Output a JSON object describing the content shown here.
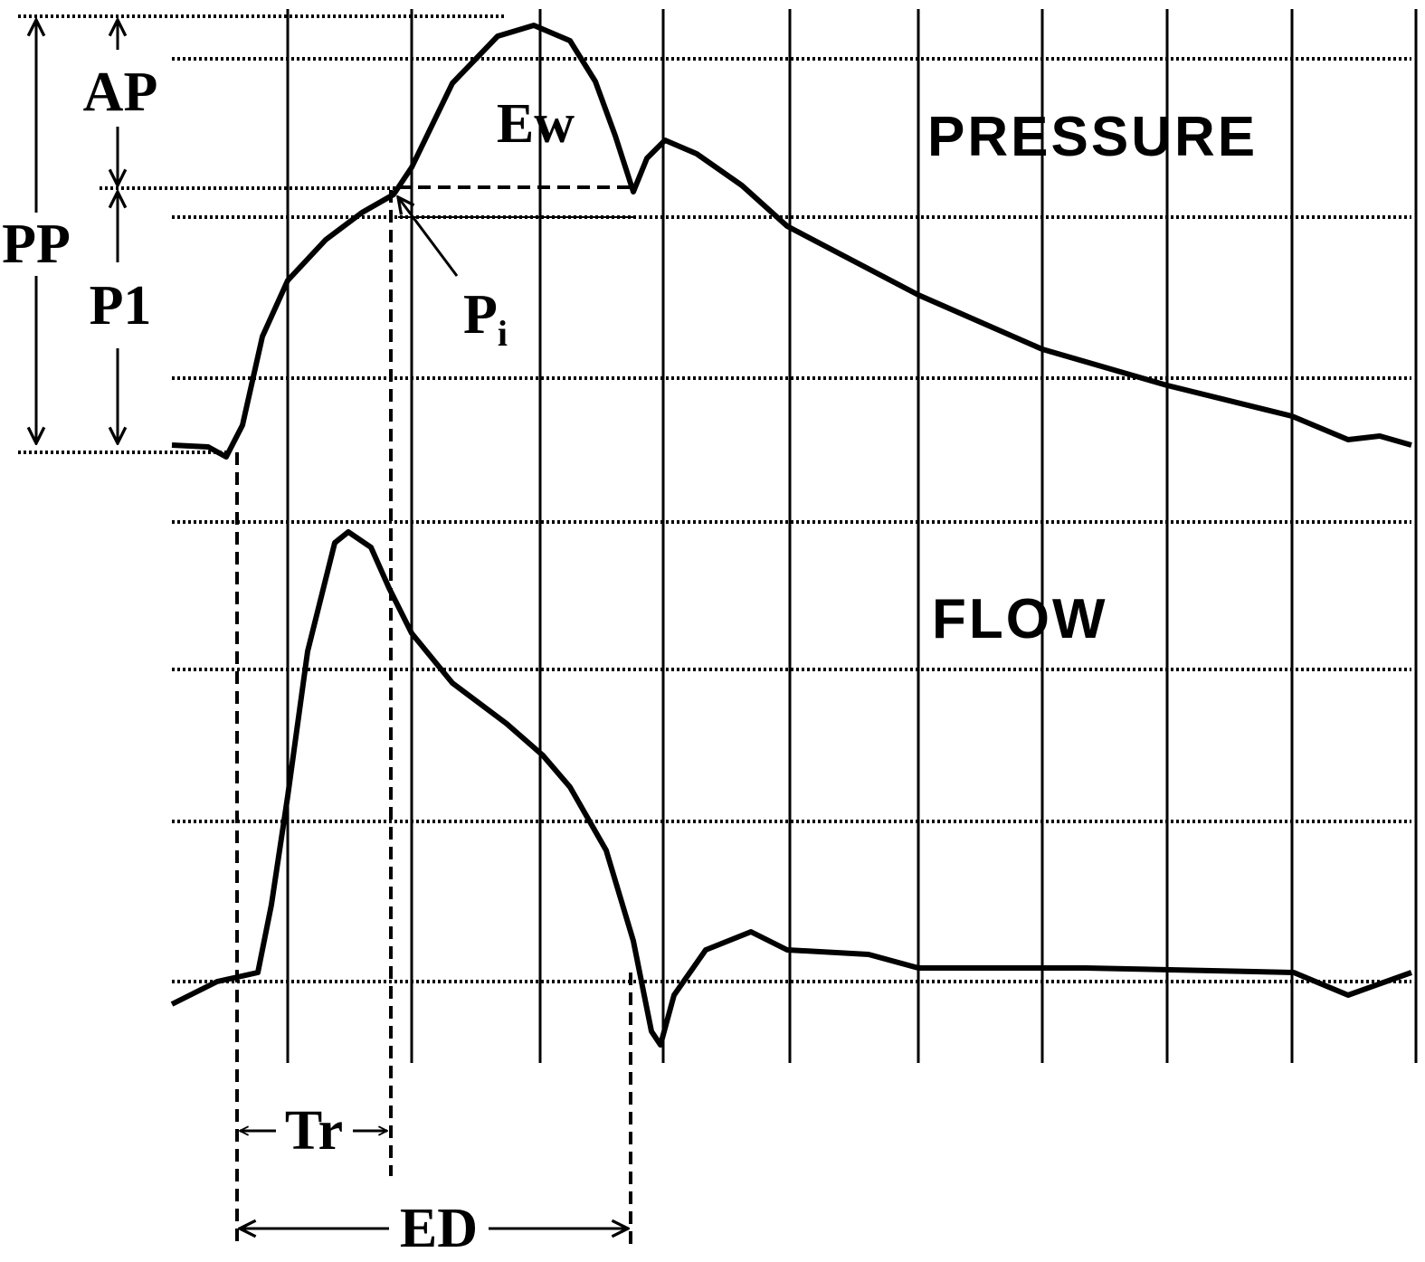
{
  "labels": {
    "pp": "PP",
    "ap": "AP",
    "p1": "P1",
    "pi": {
      "main": "P",
      "sub": "i"
    },
    "ew": "Ew",
    "pressure": "PRESSURE",
    "flow": "FLOW",
    "tr": "Tr",
    "ed": "ED"
  }
}
